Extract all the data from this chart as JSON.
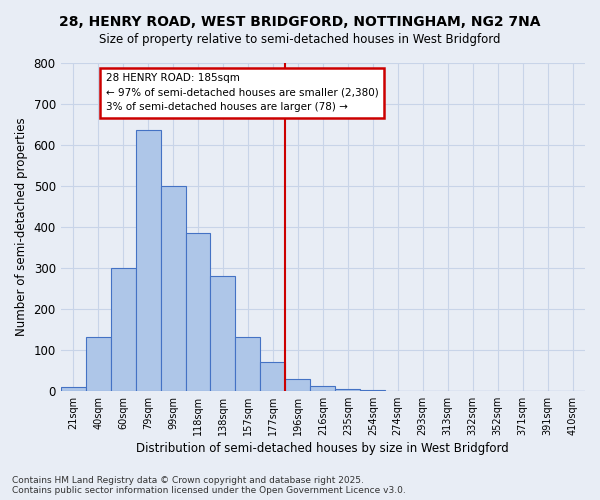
{
  "title_line1": "28, HENRY ROAD, WEST BRIDGFORD, NOTTINGHAM, NG2 7NA",
  "title_line2": "Size of property relative to semi-detached houses in West Bridgford",
  "xlabel": "Distribution of semi-detached houses by size in West Bridgford",
  "ylabel": "Number of semi-detached properties",
  "bin_labels": [
    "21sqm",
    "40sqm",
    "60sqm",
    "79sqm",
    "99sqm",
    "118sqm",
    "138sqm",
    "157sqm",
    "177sqm",
    "196sqm",
    "216sqm",
    "235sqm",
    "254sqm",
    "274sqm",
    "293sqm",
    "313sqm",
    "332sqm",
    "352sqm",
    "371sqm",
    "391sqm",
    "410sqm"
  ],
  "bar_heights": [
    10,
    130,
    300,
    635,
    500,
    385,
    280,
    130,
    70,
    28,
    12,
    5,
    2,
    0,
    0,
    0,
    0,
    0,
    0,
    0,
    0
  ],
  "bar_color": "#aec6e8",
  "bar_edge_color": "#4472c4",
  "property_line_x": 8.5,
  "annotation_text_line1": "28 HENRY ROAD: 185sqm",
  "annotation_text_line2": "← 97% of semi-detached houses are smaller (2,380)",
  "annotation_text_line3": "3% of semi-detached houses are larger (78) →",
  "annotation_box_color": "#ffffff",
  "annotation_box_edge_color": "#cc0000",
  "red_line_color": "#cc0000",
  "grid_color": "#c8d4e8",
  "background_color": "#e8edf5",
  "ylim": [
    0,
    800
  ],
  "yticks": [
    0,
    100,
    200,
    300,
    400,
    500,
    600,
    700,
    800
  ],
  "footer_line1": "Contains HM Land Registry data © Crown copyright and database right 2025.",
  "footer_line2": "Contains public sector information licensed under the Open Government Licence v3.0."
}
